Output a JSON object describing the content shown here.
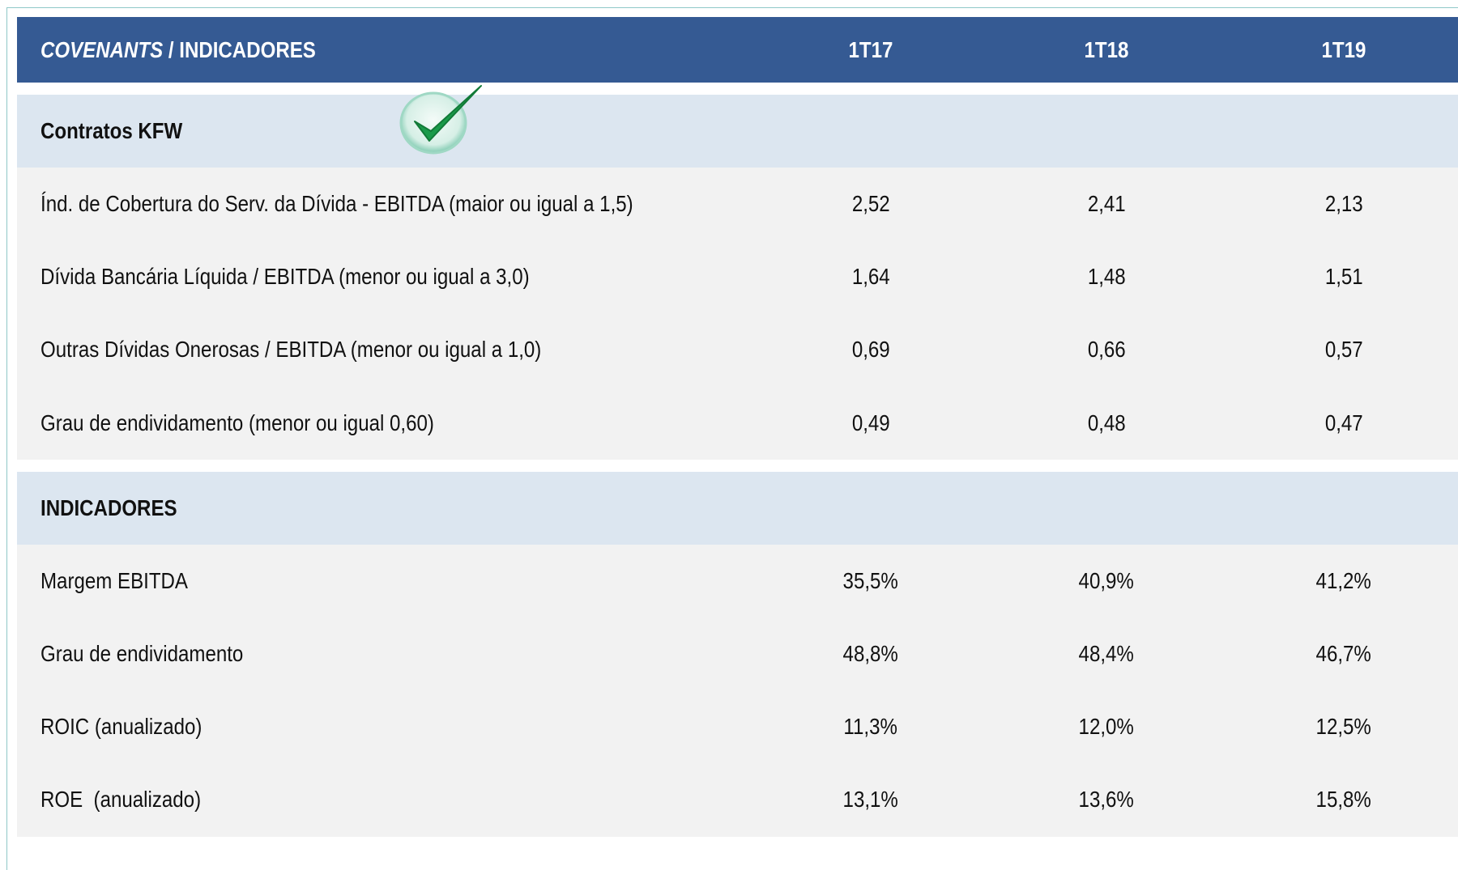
{
  "header": {
    "title_italic": "COVENANTS",
    "title_rest": "/ INDICADORES",
    "columns": [
      "1T17",
      "1T18",
      "1T19"
    ]
  },
  "sections": [
    {
      "title": "Contratos KFW",
      "rows": [
        {
          "label": "Índ. de Cobertura do Serv. da Dívida - EBITDA (maior ou igual a 1,5)",
          "values": [
            "2,52",
            "2,41",
            "2,13"
          ]
        },
        {
          "label": "Dívida Bancária Líquida / EBITDA (menor ou igual a 3,0)",
          "values": [
            "1,64",
            "1,48",
            "1,51"
          ]
        },
        {
          "label": "Outras Dívidas Onerosas / EBITDA (menor ou igual a 1,0)",
          "values": [
            "0,69",
            "0,66",
            "0,57"
          ]
        },
        {
          "label": "Grau de endividamento (menor ou igual 0,60)",
          "values": [
            "0,49",
            "0,48",
            "0,47"
          ]
        }
      ]
    },
    {
      "title": "INDICADORES",
      "rows": [
        {
          "label": "Margem EBITDA",
          "values": [
            "35,5%",
            "40,9%",
            "41,2%"
          ]
        },
        {
          "label": "Grau de endividamento",
          "values": [
            "48,8%",
            "48,4%",
            "46,7%"
          ]
        },
        {
          "label": "ROIC (anualizado)",
          "values": [
            "11,3%",
            "12,0%",
            "12,5%"
          ]
        },
        {
          "label": "ROE  (anualizado)",
          "values": [
            "13,1%",
            "13,6%",
            "15,8%"
          ]
        }
      ]
    }
  ]
}
